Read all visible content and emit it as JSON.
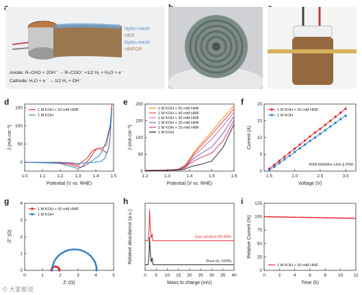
{
  "panel_letters": [
    "a",
    "b",
    "c",
    "d",
    "e",
    "f",
    "g",
    "h",
    "i"
  ],
  "panel_a": {
    "layers": [
      "Nylon mesh",
      "HER",
      "Nylon mesh",
      "HMFOR"
    ],
    "layer_colors": [
      "#6fa3d6",
      "#9a9a9a",
      "#6fa3d6",
      "#c8a06a"
    ],
    "equations": [
      "Anode: R–CHO + 2OH⁻ → R–COO⁻ +1/2 H₂ + H₂O + e⁻",
      "Cathode: H₂O + e⁻ → 1/2 H₂ + OH⁻"
    ]
  },
  "watermark": "© 大家都说",
  "chart_data": [
    {
      "panel": "d",
      "type": "line",
      "xlabel": "Potential (V vs. RHE)",
      "ylabel": "J (mA cm⁻²)",
      "xlim": [
        1.0,
        1.5
      ],
      "ylim": [
        -25,
        160
      ],
      "xticks": [
        1.0,
        1.1,
        1.2,
        1.3,
        1.4,
        1.5
      ],
      "yticks": [
        0,
        50,
        100,
        150
      ],
      "legend": "top-left",
      "series": [
        {
          "name": "1 M KOH + 50 mM HMF",
          "color": "#e0262e",
          "x": [
            1.0,
            1.1,
            1.2,
            1.25,
            1.3,
            1.35,
            1.38,
            1.4,
            1.42,
            1.44,
            1.46,
            1.47,
            1.48,
            1.49,
            1.48,
            1.46,
            1.44,
            1.42,
            1.4,
            1.36,
            1.32,
            1.3,
            1.25,
            1.2,
            1.1,
            1.0
          ],
          "y": [
            -1,
            -1,
            -1,
            -3,
            -8,
            10,
            30,
            36,
            38,
            32,
            26,
            34,
            62,
            158,
            96,
            48,
            40,
            38,
            34,
            6,
            -14,
            -13,
            -6,
            -3,
            -2,
            -1
          ]
        },
        {
          "name": "1 M KOH",
          "color": "#2f7fc1",
          "x": [
            1.0,
            1.1,
            1.2,
            1.25,
            1.3,
            1.35,
            1.4,
            1.43,
            1.45,
            1.47,
            1.48,
            1.49,
            1.48,
            1.46,
            1.44,
            1.42,
            1.38,
            1.34,
            1.3,
            1.26,
            1.2,
            1.1,
            1.0
          ],
          "y": [
            -1,
            -1,
            -1,
            -2,
            -4,
            -2,
            0,
            2,
            10,
            34,
            64,
            148,
            100,
            60,
            34,
            18,
            4,
            -10,
            -18,
            -12,
            -4,
            -2,
            -1
          ]
        }
      ]
    },
    {
      "panel": "e",
      "type": "line",
      "xlabel": "Potential (V vs. RHE)",
      "ylabel": "J (mA cm⁻²)",
      "xlim": [
        1.2,
        1.6
      ],
      "ylim": [
        0,
        200
      ],
      "xticks": [
        1.2,
        1.3,
        1.4,
        1.5,
        1.6
      ],
      "yticks": [
        0,
        50,
        100,
        150,
        200
      ],
      "legend": "top-left",
      "series": [
        {
          "name": "1 M KOH + 50 mM HMF",
          "color": "#f28c1b",
          "x": [
            1.2,
            1.3,
            1.35,
            1.38,
            1.4,
            1.42,
            1.45,
            1.5,
            1.55,
            1.6
          ],
          "y": [
            2,
            3,
            6,
            18,
            36,
            56,
            80,
            118,
            158,
            196
          ]
        },
        {
          "name": "1 M KOH + 40 mM HMF",
          "color": "#e8473b",
          "x": [
            1.2,
            1.3,
            1.35,
            1.38,
            1.4,
            1.42,
            1.45,
            1.5,
            1.55,
            1.6
          ],
          "y": [
            2,
            3,
            6,
            16,
            33,
            52,
            74,
            110,
            148,
            186
          ]
        },
        {
          "name": "1 M KOH + 30 mM HMF",
          "color": "#c86ab0",
          "x": [
            1.2,
            1.3,
            1.35,
            1.38,
            1.4,
            1.42,
            1.45,
            1.5,
            1.55,
            1.6
          ],
          "y": [
            2,
            3,
            5,
            14,
            30,
            46,
            64,
            96,
            134,
            176
          ]
        },
        {
          "name": "1 M KOH + 20 mM HMF",
          "color": "#7c5db3",
          "x": [
            1.2,
            1.3,
            1.35,
            1.38,
            1.4,
            1.42,
            1.45,
            1.5,
            1.55,
            1.6
          ],
          "y": [
            2,
            3,
            5,
            12,
            26,
            38,
            52,
            72,
            112,
            164
          ]
        },
        {
          "name": "1 M KOH + 10 mM HMF",
          "color": "#d83576",
          "x": [
            1.2,
            1.3,
            1.35,
            1.38,
            1.4,
            1.42,
            1.45,
            1.5,
            1.55,
            1.6
          ],
          "y": [
            2,
            3,
            4,
            10,
            22,
            30,
            40,
            54,
            90,
            152
          ]
        },
        {
          "name": "1 M KOH",
          "color": "#222222",
          "x": [
            1.2,
            1.3,
            1.35,
            1.38,
            1.4,
            1.42,
            1.45,
            1.5,
            1.55,
            1.6
          ],
          "y": [
            1,
            2,
            3,
            6,
            12,
            16,
            20,
            30,
            70,
            140
          ]
        }
      ]
    },
    {
      "panel": "f",
      "type": "line",
      "xlabel": "Voltage (V)",
      "ylabel": "Current (A)",
      "xlim": [
        1.4,
        3.2
      ],
      "ylim": [
        0,
        20
      ],
      "xticks": [
        1.5,
        2.0,
        2.5,
        3.0
      ],
      "yticks": [
        0,
        5,
        10,
        15,
        20
      ],
      "legend": "top-left",
      "annotation": "R2R MoNiFe-LDH || PtNi",
      "series": [
        {
          "name": "1 M KOH + 50 mM HMF",
          "color": "#e0262e",
          "marker": "circle",
          "x": [
            1.5,
            1.6,
            1.7,
            1.8,
            1.9,
            2.0,
            2.1,
            2.2,
            2.3,
            2.4,
            2.5,
            2.6,
            2.7,
            2.8,
            2.9,
            3.0
          ],
          "y": [
            0.7,
            1.9,
            3.1,
            4.3,
            5.5,
            6.7,
            7.9,
            9.1,
            10.3,
            11.5,
            12.6,
            13.8,
            15.0,
            16.2,
            17.4,
            18.6
          ]
        },
        {
          "name": "1 M KOH",
          "color": "#2f7fc1",
          "marker": "square",
          "x": [
            1.5,
            1.6,
            1.7,
            1.8,
            1.9,
            2.0,
            2.1,
            2.2,
            2.3,
            2.4,
            2.5,
            2.6,
            2.7,
            2.8,
            2.9,
            3.0
          ],
          "y": [
            0.3,
            1.3,
            2.4,
            3.5,
            4.6,
            5.7,
            6.8,
            7.9,
            9.0,
            10.0,
            11.1,
            12.2,
            13.3,
            14.4,
            15.5,
            16.5
          ]
        }
      ]
    },
    {
      "panel": "g",
      "type": "scatter",
      "xlabel": "Z' (Ω)",
      "ylabel": "-Z'' (Ω)",
      "xlim": [
        0,
        5
      ],
      "ylim": [
        0,
        4
      ],
      "xticks": [
        0,
        1,
        2,
        3,
        4,
        5
      ],
      "yticks": [
        0,
        1,
        2,
        3,
        4
      ],
      "legend": "top-left",
      "series": [
        {
          "name": "1 M KOH + 50 mM HMF",
          "color": "#e0262e",
          "marker": "circle",
          "arc": {
            "start": 1.5,
            "end": 1.95
          }
        },
        {
          "name": "1 M KOH",
          "color": "#2f7fc1",
          "marker": "circle",
          "arc": {
            "start": 1.55,
            "end": 4.05
          }
        }
      ]
    },
    {
      "panel": "h",
      "type": "line",
      "xlabel": "Mass to charge (m/z)",
      "ylabel": "Relative abundance (a.u.)",
      "xlim": [
        0,
        40
      ],
      "xticks": [
        0,
        5,
        10,
        15,
        20,
        25,
        30,
        35,
        40
      ],
      "series": [
        {
          "name": "Gas product 99.96%",
          "color": "#e0262e",
          "baseline": 0.53,
          "peak_x": 2,
          "peak_height": 0.55
        },
        {
          "name": "Pure H₂ 100%",
          "color": "#222222",
          "baseline": 0.1,
          "peak_x": 2,
          "peak_height": 0.5
        }
      ]
    },
    {
      "panel": "i",
      "type": "line",
      "xlabel": "Time (h)",
      "ylabel": "Relative Current (%)",
      "xlim": [
        0,
        12
      ],
      "ylim": [
        0,
        125
      ],
      "xticks": [
        0,
        2,
        4,
        6,
        8,
        10,
        12
      ],
      "yticks": [
        0,
        25,
        50,
        75,
        100,
        125
      ],
      "legend": "bottom-left",
      "series": [
        {
          "name": "1 M KOH + 50 mM HMF",
          "color": "#e0262e",
          "x": [
            0,
            2,
            4,
            6,
            8,
            10,
            12
          ],
          "y": [
            100,
            99,
            98.6,
            98.2,
            97.8,
            97.4,
            97
          ]
        }
      ]
    }
  ]
}
